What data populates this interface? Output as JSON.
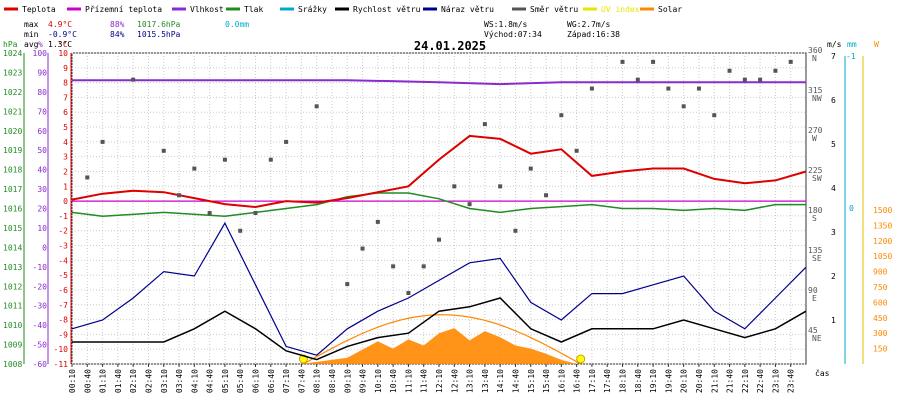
{
  "chart_data": {
    "type": "line",
    "title": "24.01.2025",
    "legend": [
      {
        "name": "Teplota",
        "color": "#dd0000"
      },
      {
        "name": "Přízemní teplota",
        "color": "#cc00cc"
      },
      {
        "name": "Vlhkost",
        "color": "#8a2bd0"
      },
      {
        "name": "Tlak",
        "color": "#228b22"
      },
      {
        "name": "Srážky",
        "color": "#00aacc"
      },
      {
        "name": "Rychlost větru",
        "color": "#000000"
      },
      {
        "name": "Náraz větru",
        "color": "#00008b"
      },
      {
        "name": "Směr větru",
        "color": "#555555"
      },
      {
        "name": "UV index",
        "color": "#e6e600"
      },
      {
        "name": "Solar",
        "color": "#ff8800"
      }
    ],
    "stats": {
      "max": {
        "label": "max",
        "temp": "4.9°C",
        "hum": "88%",
        "press": "1017.6hPa",
        "rain": "0.0mm"
      },
      "min": {
        "label": "min",
        "temp": "-0.9°C",
        "hum": "84%",
        "press": "1015.5hPa"
      },
      "avg": {
        "label": "avg",
        "temp": "1.3°C"
      }
    },
    "wind_info": {
      "ws": "WS:1.8m/s",
      "wg": "WG:2.7m/s",
      "sunrise": "Východ:07:34",
      "sunset": "Západ:16:38"
    },
    "axes": {
      "hpa": {
        "unit": "hPa",
        "ticks": [
          "1024",
          "1023",
          "1022",
          "1021",
          "1020",
          "1019",
          "1018",
          "1017",
          "1016",
          "1015",
          "1014",
          "1013",
          "1012",
          "1011",
          "1010",
          "1009",
          "1008"
        ]
      },
      "pct": {
        "unit": "%",
        "ticks": [
          "100",
          "90",
          "80",
          "70",
          "60",
          "50",
          "40",
          "30",
          "20",
          "10",
          "0",
          "-10",
          "-20",
          "-30",
          "-40",
          "-50",
          "-60"
        ]
      },
      "temp": {
        "unit": "°C",
        "ticks": [
          "10",
          "9",
          "8",
          "7",
          "6",
          "5",
          "4",
          "3",
          "2",
          "1",
          "0",
          "-1",
          "-2",
          "-3",
          "-4",
          "-5",
          "-6",
          "-7",
          "-8",
          "-9",
          "-10",
          "-11"
        ]
      },
      "dir": {
        "ticks": [
          {
            "v": "360",
            "c": "N"
          },
          {
            "v": "315",
            "c": "NW"
          },
          {
            "v": "270",
            "c": "W"
          },
          {
            "v": "225",
            "c": "SW"
          },
          {
            "v": "180",
            "c": "S"
          },
          {
            "v": "135",
            "c": "SE"
          },
          {
            "v": "90",
            "c": "E"
          },
          {
            "v": "45",
            "c": "NE"
          }
        ]
      },
      "ms": {
        "unit": "m/s",
        "ticks": [
          "7",
          "6",
          "5",
          "4",
          "3",
          "2",
          "1"
        ]
      },
      "mm": {
        "unit": "mm",
        "ticks": [
          "-1",
          "0"
        ]
      },
      "w": {
        "unit": "W",
        "ticks": [
          "1500",
          "1350",
          "1200",
          "1050",
          "900",
          "750",
          "600",
          "450",
          "300",
          "150"
        ]
      },
      "xlabel": "čas",
      "x_ticks": [
        "00:10",
        "00:40",
        "01:10",
        "01:40",
        "02:10",
        "02:40",
        "03:10",
        "03:40",
        "04:10",
        "04:40",
        "05:10",
        "05:40",
        "06:10",
        "06:40",
        "07:10",
        "07:40",
        "08:10",
        "08:40",
        "09:10",
        "09:40",
        "10:10",
        "10:40",
        "11:10",
        "11:40",
        "12:10",
        "12:40",
        "13:10",
        "13:40",
        "14:10",
        "14:40",
        "15:10",
        "15:40",
        "16:10",
        "16:40",
        "17:10",
        "17:40",
        "18:10",
        "18:40",
        "19:10",
        "19:40",
        "20:10",
        "20:40",
        "21:10",
        "21:40",
        "22:10",
        "22:40",
        "23:10",
        "23:40"
      ]
    },
    "series": [
      {
        "name": "Teplota",
        "unit": "°C",
        "color": "#dd0000",
        "x": [
          0,
          1,
          2,
          3,
          4,
          5,
          6,
          7,
          8,
          9,
          10,
          11,
          12,
          13,
          14,
          15,
          16,
          17,
          18,
          19,
          20,
          21,
          22,
          23,
          24
        ],
        "values": [
          0.1,
          0.5,
          0.7,
          0.6,
          0.2,
          -0.2,
          -0.4,
          0.0,
          -0.1,
          0.2,
          0.6,
          1.0,
          2.8,
          4.4,
          4.2,
          3.2,
          3.5,
          1.7,
          2.0,
          2.2,
          2.2,
          1.5,
          1.2,
          1.4,
          2.0
        ]
      },
      {
        "name": "Přízemní teplota",
        "unit": "°C",
        "color": "#cc00cc",
        "x": [
          0,
          24
        ],
        "values": [
          0.0,
          0.0
        ]
      },
      {
        "name": "Vlhkost",
        "unit": "%",
        "color": "#8a2bd0",
        "x": [
          0,
          4,
          9,
          12,
          14,
          16,
          18,
          20,
          22,
          24
        ],
        "values": [
          86,
          86,
          86,
          85,
          84,
          85,
          85,
          85,
          85,
          85
        ]
      },
      {
        "name": "Tlak",
        "unit": "hPa",
        "color": "#228b22",
        "x": [
          0,
          1,
          3,
          5,
          7,
          8,
          9,
          10,
          11,
          12,
          13,
          14,
          15,
          16,
          17,
          18,
          19,
          20,
          21,
          22,
          23,
          24
        ],
        "values": [
          1015.8,
          1015.6,
          1015.8,
          1015.6,
          1016.0,
          1016.2,
          1016.6,
          1016.8,
          1016.8,
          1016.5,
          1016.0,
          1015.8,
          1016.0,
          1016.1,
          1016.2,
          1016.0,
          1016.0,
          1015.9,
          1016.0,
          1015.9,
          1016.2,
          1016.2
        ]
      },
      {
        "name": "Rychlost větru",
        "unit": "m/s",
        "color": "#000000",
        "x": [
          0,
          1,
          2,
          3,
          4,
          5,
          6,
          7,
          8,
          9,
          10,
          11,
          12,
          13,
          14,
          15,
          16,
          17,
          18,
          19,
          20,
          21,
          22,
          23,
          24
        ],
        "values": [
          0.5,
          0.5,
          0.5,
          0.5,
          0.8,
          1.2,
          0.8,
          0.3,
          0.1,
          0.4,
          0.6,
          0.7,
          1.2,
          1.3,
          1.5,
          0.8,
          0.5,
          0.8,
          0.8,
          0.8,
          1.0,
          0.8,
          0.6,
          0.8,
          1.2
        ]
      },
      {
        "name": "Náraz větru",
        "unit": "m/s",
        "color": "#00008b",
        "x": [
          0,
          1,
          2,
          3,
          4,
          5,
          6,
          7,
          8,
          9,
          10,
          11,
          12,
          13,
          14,
          15,
          16,
          17,
          18,
          19,
          20,
          21,
          22,
          23,
          24
        ],
        "values": [
          0.8,
          1.0,
          1.5,
          2.1,
          2.0,
          3.2,
          1.8,
          0.4,
          0.2,
          0.8,
          1.2,
          1.5,
          1.9,
          2.3,
          2.4,
          1.4,
          1.0,
          1.6,
          1.6,
          1.8,
          2.0,
          1.2,
          0.8,
          1.5,
          2.2
        ]
      },
      {
        "name": "Směr větru",
        "unit": "°",
        "color": "#555555",
        "x": [
          0.5,
          1,
          2,
          3,
          3.5,
          4,
          4.5,
          5,
          5.5,
          6,
          6.5,
          7,
          8,
          9,
          9.5,
          10,
          10.5,
          11,
          11.5,
          12,
          12.5,
          13,
          13.5,
          14,
          14.5,
          15,
          15.5,
          16,
          16.5,
          17,
          18,
          18.5,
          19,
          19.5,
          20,
          20.5,
          21,
          21.5,
          22,
          22.5,
          23,
          23.5
        ],
        "values": [
          220,
          260,
          330,
          250,
          200,
          230,
          180,
          240,
          160,
          180,
          240,
          260,
          300,
          100,
          140,
          170,
          120,
          90,
          120,
          150,
          210,
          190,
          280,
          210,
          160,
          230,
          200,
          290,
          250,
          320,
          350,
          330,
          350,
          320,
          300,
          320,
          290,
          340,
          330,
          330,
          340,
          350
        ]
      },
      {
        "name": "Solar",
        "unit": "W",
        "color": "#ff8800",
        "x": [
          7.5,
          9,
          10,
          10.5,
          11,
          11.5,
          12,
          12.5,
          13,
          13.5,
          14,
          14.5,
          15,
          15.5,
          16,
          16.5
        ],
        "values": [
          0,
          60,
          220,
          150,
          240,
          180,
          300,
          350,
          230,
          320,
          260,
          180,
          150,
          100,
          40,
          0
        ]
      }
    ],
    "solar_max_curve": {
      "color": "#ff8800",
      "start": "07:34",
      "end": "16:38",
      "peak": 480
    }
  }
}
